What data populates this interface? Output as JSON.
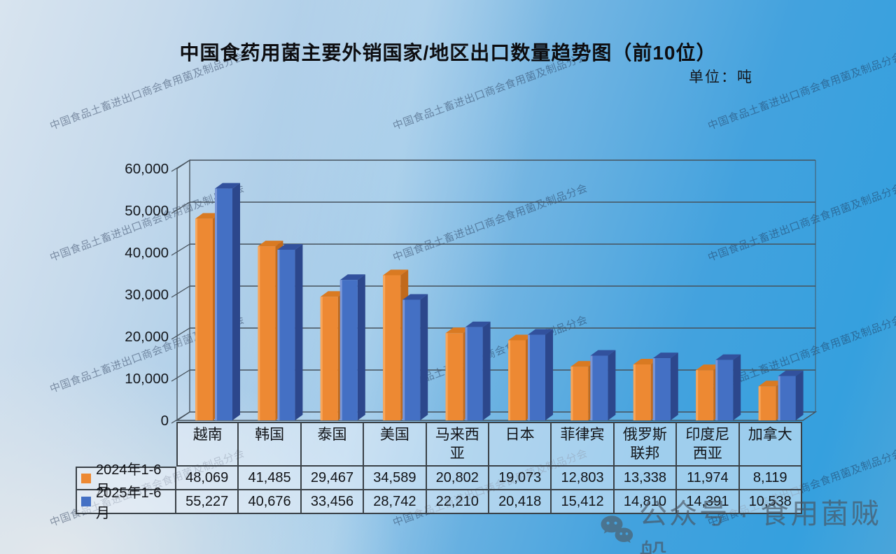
{
  "unit_label": "单位：吨",
  "watermark": {
    "text": "中国食品土畜进出口商会食用菌及制品分会"
  },
  "badge": {
    "icon": "wechat-icon",
    "text": "公众号 · 食用菌贼船"
  },
  "chart_data": {
    "type": "bar",
    "variant": "3d-column",
    "title": "中国食药用菌主要外销国家/地区出口数量趋势图（前10位）",
    "xlabel": "",
    "ylabel": "单位：吨",
    "categories": [
      "越南",
      "韩国",
      "泰国",
      "美国",
      "马来西亚",
      "日本",
      "菲律宾",
      "俄罗斯联邦",
      "印度尼西亚",
      "加拿大"
    ],
    "series": [
      {
        "name": "2024年1-6月",
        "color": "#ED8933",
        "color_light": "#F8A65A",
        "color_top": "#D97A22",
        "color_side": "#C16A1C",
        "values": [
          48069,
          41485,
          29467,
          34589,
          20802,
          19073,
          12803,
          13338,
          11974,
          8119
        ]
      },
      {
        "name": "2025年1-6月",
        "color": "#4470C4",
        "color_light": "#7A97D8",
        "color_top": "#32519D",
        "color_side": "#2C478C",
        "values": [
          55227,
          40676,
          33456,
          28742,
          22210,
          20418,
          15412,
          14810,
          14391,
          10538
        ]
      }
    ],
    "ylim": [
      0,
      60000
    ],
    "ytick_step": 10000,
    "ytick_labels": [
      "0",
      "10,000",
      "20,000",
      "30,000",
      "40,000",
      "50,000",
      "60,000"
    ],
    "grid": true,
    "legend_position": "data-table-left"
  }
}
